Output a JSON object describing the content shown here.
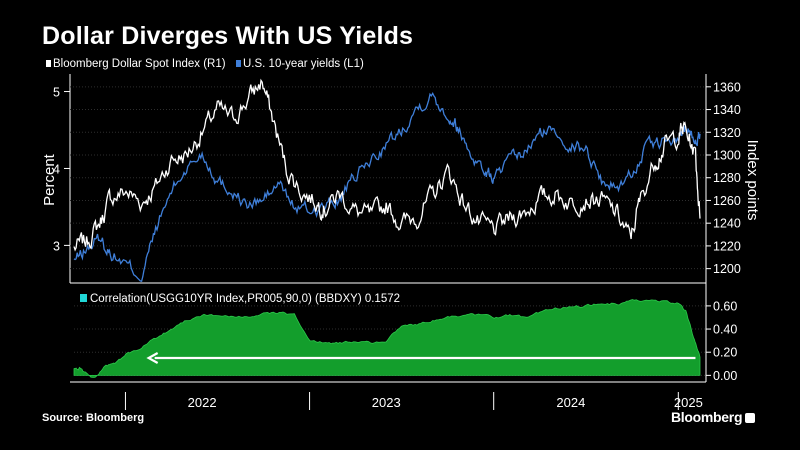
{
  "title": "Dollar Diverges With US Yields",
  "source": "Source: Bloomberg",
  "logo": "Bloomberg",
  "colors": {
    "dollar": "#ffffff",
    "yields": "#3f7fd9",
    "correlation_fill": "#139e2c",
    "correlation_legend": "#21d7d7",
    "arrow": "#ffffff",
    "grid": "#2e2e2e"
  },
  "chart_data": [
    {
      "type": "line",
      "legend": [
        {
          "label": "Bloomberg Dollar Spot Index (R1)"
        },
        {
          "label": "U.S. 10-year yields (L1)"
        }
      ],
      "ylabel_left": "Percent",
      "ylabel_right": "Index points",
      "left_ticks": [
        "3",
        "4",
        "5"
      ],
      "right_ticks": [
        "1200",
        "1220",
        "1240",
        "1260",
        "1280",
        "1300",
        "1320",
        "1340",
        "1360"
      ],
      "ylim_left": [
        2.55,
        5.15
      ],
      "ylim_right": [
        1190,
        1366
      ],
      "xlim": [
        "2021-09-20",
        "2025-02-12"
      ],
      "series": [
        {
          "name": "Bloomberg Dollar Spot Index (R1)",
          "axis": "right",
          "x": [
            "2021-09-20",
            "2021-10-15",
            "2021-11-10",
            "2021-12-01",
            "2022-01-01",
            "2022-02-01",
            "2022-03-01",
            "2022-04-01",
            "2022-05-01",
            "2022-06-01",
            "2022-07-01",
            "2022-08-01",
            "2022-09-01",
            "2022-09-28",
            "2022-10-20",
            "2022-11-15",
            "2022-12-15",
            "2023-01-15",
            "2023-02-01",
            "2023-03-01",
            "2023-04-01",
            "2023-05-01",
            "2023-06-01",
            "2023-07-01",
            "2023-08-01",
            "2023-09-01",
            "2023-10-03",
            "2023-11-01",
            "2023-12-01",
            "2024-01-01",
            "2024-02-01",
            "2024-03-01",
            "2024-04-01",
            "2024-05-01",
            "2024-06-01",
            "2024-07-01",
            "2024-08-01",
            "2024-09-01",
            "2024-09-27",
            "2024-10-15",
            "2024-11-15",
            "2024-12-05",
            "2025-01-01",
            "2025-01-13",
            "2025-02-03",
            "2025-02-12"
          ],
          "values": [
            1218,
            1224,
            1240,
            1262,
            1268,
            1258,
            1272,
            1296,
            1300,
            1320,
            1340,
            1332,
            1350,
            1365,
            1330,
            1288,
            1268,
            1258,
            1254,
            1266,
            1250,
            1246,
            1256,
            1240,
            1246,
            1264,
            1286,
            1258,
            1240,
            1234,
            1244,
            1250,
            1262,
            1266,
            1258,
            1262,
            1260,
            1248,
            1226,
            1258,
            1296,
            1308,
            1318,
            1324,
            1300,
            1244
          ]
        },
        {
          "name": "U.S. 10-year yields (L1)",
          "axis": "left",
          "x": [
            "2021-09-20",
            "2021-10-15",
            "2021-11-10",
            "2021-12-01",
            "2022-01-01",
            "2022-02-01",
            "2022-03-01",
            "2022-04-01",
            "2022-05-01",
            "2022-06-01",
            "2022-07-01",
            "2022-08-01",
            "2022-09-01",
            "2022-10-01",
            "2022-11-01",
            "2022-12-01",
            "2023-01-01",
            "2023-02-01",
            "2023-03-01",
            "2023-04-01",
            "2023-05-01",
            "2023-06-01",
            "2023-07-01",
            "2023-08-01",
            "2023-09-01",
            "2023-10-01",
            "2023-10-20",
            "2023-11-15",
            "2023-12-15",
            "2024-01-01",
            "2024-02-01",
            "2024-03-01",
            "2024-04-01",
            "2024-05-01",
            "2024-06-01",
            "2024-07-01",
            "2024-08-01",
            "2024-09-01",
            "2024-10-01",
            "2024-11-01",
            "2024-12-01",
            "2025-01-01",
            "2025-01-13",
            "2025-02-01",
            "2025-02-12"
          ],
          "values": [
            2.8,
            2.95,
            3.1,
            2.9,
            2.75,
            2.6,
            3.2,
            3.7,
            4.0,
            4.2,
            3.85,
            3.7,
            3.5,
            3.6,
            3.8,
            3.5,
            3.45,
            3.5,
            3.6,
            3.9,
            4.1,
            4.3,
            4.5,
            4.8,
            4.95,
            4.7,
            4.55,
            4.2,
            3.95,
            3.88,
            4.1,
            4.2,
            4.45,
            4.5,
            4.3,
            4.25,
            3.85,
            3.75,
            3.95,
            4.3,
            4.35,
            4.35,
            4.55,
            4.4,
            4.45
          ]
        }
      ]
    },
    {
      "type": "area",
      "legend": [
        {
          "label": "Correlation(USGG10YR Index,PR005,90,0) (BBDXY) 0.1572"
        }
      ],
      "right_ticks": [
        "0.00",
        "0.20",
        "0.40",
        "0.60"
      ],
      "ylim": [
        -0.04,
        0.72
      ],
      "xlim": [
        "2021-09-20",
        "2025-02-12"
      ],
      "x": [
        "2021-09-20",
        "2021-10-01",
        "2021-10-20",
        "2021-11-01",
        "2021-11-20",
        "2021-12-10",
        "2022-01-01",
        "2022-02-01",
        "2022-03-01",
        "2022-04-01",
        "2022-05-01",
        "2022-06-01",
        "2022-07-01",
        "2022-08-01",
        "2022-09-01",
        "2022-10-01",
        "2022-11-01",
        "2022-12-01",
        "2023-01-01",
        "2023-02-01",
        "2023-03-01",
        "2023-04-01",
        "2023-05-01",
        "2023-06-01",
        "2023-07-01",
        "2023-08-01",
        "2023-09-01",
        "2023-10-01",
        "2023-11-01",
        "2023-12-01",
        "2024-01-01",
        "2024-02-01",
        "2024-03-01",
        "2024-04-01",
        "2024-05-01",
        "2024-06-01",
        "2024-07-01",
        "2024-08-01",
        "2024-09-01",
        "2024-10-01",
        "2024-11-01",
        "2024-12-01",
        "2025-01-01",
        "2025-01-15",
        "2025-02-01",
        "2025-02-12"
      ],
      "values": [
        0.05,
        0.06,
        0.0,
        -0.02,
        0.08,
        0.1,
        0.18,
        0.24,
        0.32,
        0.4,
        0.48,
        0.52,
        0.52,
        0.5,
        0.5,
        0.54,
        0.54,
        0.52,
        0.3,
        0.28,
        0.28,
        0.3,
        0.28,
        0.3,
        0.42,
        0.44,
        0.48,
        0.5,
        0.52,
        0.52,
        0.5,
        0.52,
        0.5,
        0.54,
        0.58,
        0.6,
        0.6,
        0.62,
        0.62,
        0.64,
        0.64,
        0.64,
        0.62,
        0.55,
        0.3,
        0.1572
      ],
      "arrow": {
        "from": {
          "x": "2025-02-03",
          "y": 0.15
        },
        "to": {
          "x": "2022-02-15",
          "y": 0.15
        }
      }
    }
  ],
  "x_axis": {
    "labels": [
      "2022",
      "2023",
      "2024",
      "2025"
    ],
    "label_dates": [
      "2022-06-01",
      "2023-06-01",
      "2024-06-01",
      "2025-01-20"
    ],
    "separators": [
      "2021-12-31",
      "2022-12-31",
      "2023-12-31",
      "2024-12-31"
    ]
  }
}
